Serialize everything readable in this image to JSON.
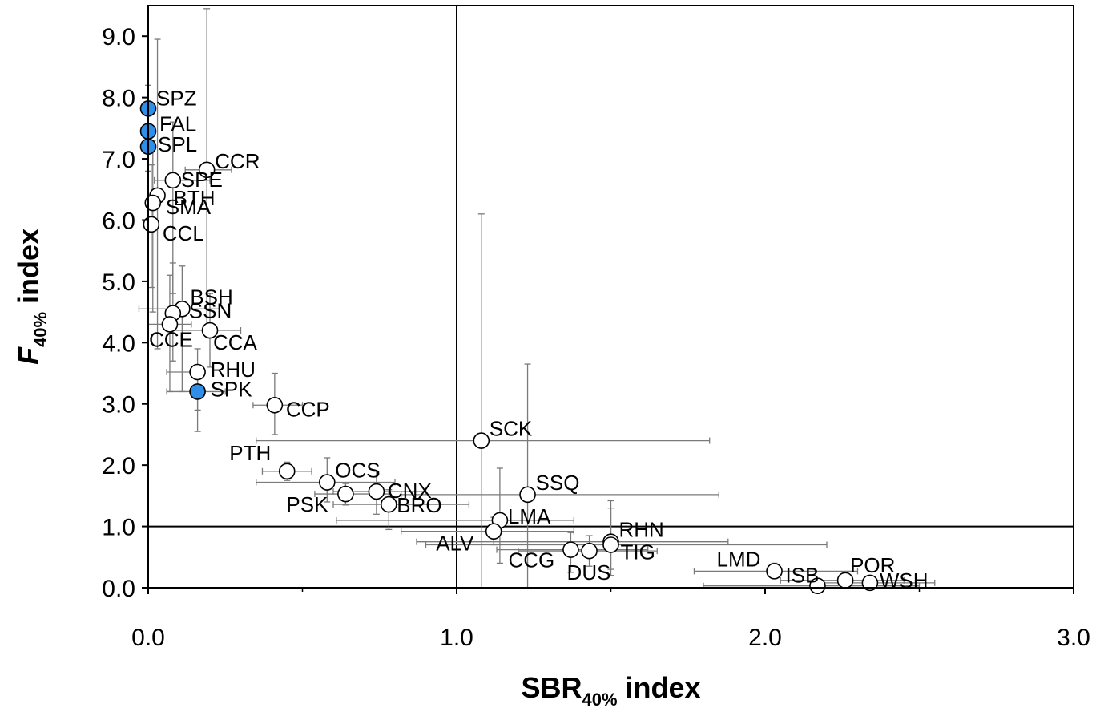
{
  "chart_data": {
    "type": "scatter",
    "title": "",
    "xlabel": {
      "main": "SBR",
      "sub": "40%",
      "suffix": " index"
    },
    "ylabel": {
      "main": "F",
      "sub": "40%",
      "suffix": " index"
    },
    "xlim": [
      0,
      3
    ],
    "ylim": [
      0,
      9.5
    ],
    "x_ticks": [
      "0.0",
      "1.0",
      "2.0",
      "3.0"
    ],
    "y_ticks": [
      "0.0",
      "1.0",
      "2.0",
      "3.0",
      "4.0",
      "5.0",
      "6.0",
      "7.0",
      "8.0",
      "9.0"
    ],
    "reference_lines": {
      "x": 1.0,
      "y": 1.0
    },
    "colors": {
      "highlight": "#2f8fe8",
      "normal": "#ffffff",
      "error_bar": "#7a7a7a"
    },
    "points": [
      {
        "label": "SPZ",
        "x": 0.0,
        "y": 7.82,
        "highlight": true,
        "ey_low": 7.45,
        "ey_high": 8.2
      },
      {
        "label": "FAL",
        "x": 0.0,
        "y": 7.45,
        "highlight": true,
        "ey_low": 7.1,
        "ey_high": 7.85
      },
      {
        "label": "SPL",
        "x": 0.0,
        "y": 7.2,
        "highlight": true,
        "ey_low": 6.8,
        "ey_high": 7.55
      },
      {
        "label": "CCR",
        "x": 0.19,
        "y": 6.82,
        "highlight": false,
        "ey_low": 4.2,
        "ey_high": 9.45,
        "ex_low": 0.12,
        "ex_high": 0.27
      },
      {
        "label": "SPE",
        "x": 0.08,
        "y": 6.65,
        "highlight": false,
        "ey_low": 4.8,
        "ey_high": 7.6,
        "ex_low": 0.02,
        "ex_high": 0.2
      },
      {
        "label": "BTH",
        "x": 0.03,
        "y": 6.4,
        "highlight": false,
        "ey_low": 3.9,
        "ey_high": 8.95
      },
      {
        "label": "SMA",
        "x": 0.015,
        "y": 6.28,
        "highlight": false,
        "ey_low": 4.5,
        "ey_high": 7.3
      },
      {
        "label": "CCL",
        "x": 0.01,
        "y": 5.93,
        "highlight": false,
        "ey_low": 4.9,
        "ey_high": 6.9
      },
      {
        "label": "BSH",
        "x": 0.11,
        "y": 4.55,
        "highlight": false,
        "ey_low": 3.2,
        "ey_high": 5.25,
        "ex_low": -0.03,
        "ex_high": 0.23
      },
      {
        "label": "SSN",
        "x": 0.08,
        "y": 4.48,
        "highlight": false,
        "ey_low": 3.7,
        "ey_high": 5.3
      },
      {
        "label": "CCE",
        "x": 0.07,
        "y": 4.3,
        "highlight": false,
        "ey_low": 3.2,
        "ey_high": 5.1,
        "ex_low": 0.0,
        "ex_high": 0.14
      },
      {
        "label": "CCA",
        "x": 0.2,
        "y": 4.2,
        "highlight": false,
        "ey_low": 3.6,
        "ey_high": 4.8,
        "ex_low": 0.08,
        "ex_high": 0.3
      },
      {
        "label": "RHU",
        "x": 0.16,
        "y": 3.52,
        "highlight": false,
        "ey_low": 2.9,
        "ey_high": 3.9,
        "ex_low": 0.06,
        "ex_high": 0.18
      },
      {
        "label": "SPK",
        "x": 0.16,
        "y": 3.2,
        "highlight": true,
        "ey_low": 2.55,
        "ey_high": 3.5,
        "ex_low": 0.06,
        "ex_high": 0.25
      },
      {
        "label": "CCP",
        "x": 0.41,
        "y": 2.98,
        "highlight": false,
        "ey_low": 2.5,
        "ey_high": 3.5,
        "ex_low": 0.34,
        "ex_high": 0.5
      },
      {
        "label": "SCK",
        "x": 1.08,
        "y": 2.4,
        "highlight": false,
        "ey_low": 0.0,
        "ey_high": 6.1,
        "ex_low": 0.35,
        "ex_high": 1.82
      },
      {
        "label": "PTH",
        "x": 0.45,
        "y": 1.9,
        "highlight": false,
        "ey_low": 1.75,
        "ey_high": 2.05,
        "ex_low": 0.37,
        "ex_high": 0.53
      },
      {
        "label": "OCS",
        "x": 0.58,
        "y": 1.72,
        "highlight": false,
        "ey_low": 1.4,
        "ey_high": 2.12,
        "ex_low": 0.35,
        "ex_high": 0.8
      },
      {
        "label": "CNX",
        "x": 0.74,
        "y": 1.57,
        "highlight": false,
        "ey_low": 1.2,
        "ey_high": 1.9,
        "ex_low": 0.6,
        "ex_high": 0.9
      },
      {
        "label": "PSK",
        "x": 0.64,
        "y": 1.53,
        "highlight": false,
        "ey_low": 1.35,
        "ey_high": 1.7,
        "ex_low": 0.54,
        "ex_high": 0.78
      },
      {
        "label": "SSQ",
        "x": 1.23,
        "y": 1.52,
        "highlight": false,
        "ey_low": 0.0,
        "ey_high": 3.65,
        "ex_low": 0.82,
        "ex_high": 1.85
      },
      {
        "label": "BRO",
        "x": 0.78,
        "y": 1.36,
        "highlight": false,
        "ey_low": 0.95,
        "ey_high": 1.6,
        "ex_low": 0.6,
        "ex_high": 1.04
      },
      {
        "label": "LMA",
        "x": 1.14,
        "y": 1.1,
        "highlight": false,
        "ey_low": 0.4,
        "ey_high": 1.95,
        "ex_low": 0.61,
        "ex_high": 1.38
      },
      {
        "label": "ALV",
        "x": 1.12,
        "y": 0.92,
        "highlight": false,
        "ey_low": 0.7,
        "ey_high": 1.15,
        "ex_low": 0.82,
        "ex_high": 1.38
      },
      {
        "label": "RHN",
        "x": 1.5,
        "y": 0.75,
        "highlight": false,
        "ey_low": 0.3,
        "ey_high": 1.42,
        "ex_low": 0.87,
        "ex_high": 1.88
      },
      {
        "label": "TIG",
        "x": 1.5,
        "y": 0.7,
        "highlight": false,
        "ey_low": 0.2,
        "ey_high": 1.3,
        "ex_low": 0.9,
        "ex_high": 2.2
      },
      {
        "label": "CCG",
        "x": 1.37,
        "y": 0.62,
        "highlight": false,
        "ey_low": 0.25,
        "ey_high": 0.9,
        "ex_low": 1.13,
        "ex_high": 1.62
      },
      {
        "label": "DUS",
        "x": 1.43,
        "y": 0.6,
        "highlight": false,
        "ey_low": 0.35,
        "ey_high": 0.85,
        "ex_low": 1.2,
        "ex_high": 1.65
      },
      {
        "label": "LMD",
        "x": 2.03,
        "y": 0.27,
        "highlight": false,
        "ey_low": 0.15,
        "ey_high": 0.4,
        "ex_low": 1.77,
        "ex_high": 2.3
      },
      {
        "label": "ISB",
        "x": 2.17,
        "y": 0.03,
        "highlight": false,
        "ey_low": 0.0,
        "ey_high": 0.1,
        "ex_low": 1.8,
        "ex_high": 2.5
      },
      {
        "label": "POR",
        "x": 2.26,
        "y": 0.12,
        "highlight": false,
        "ey_low": 0.02,
        "ey_high": 0.22,
        "ex_low": 2.05,
        "ex_high": 2.45
      },
      {
        "label": "WSH",
        "x": 2.34,
        "y": 0.08,
        "highlight": false,
        "ey_low": 0.0,
        "ey_high": 0.18,
        "ex_low": 2.15,
        "ex_high": 2.55
      }
    ]
  }
}
